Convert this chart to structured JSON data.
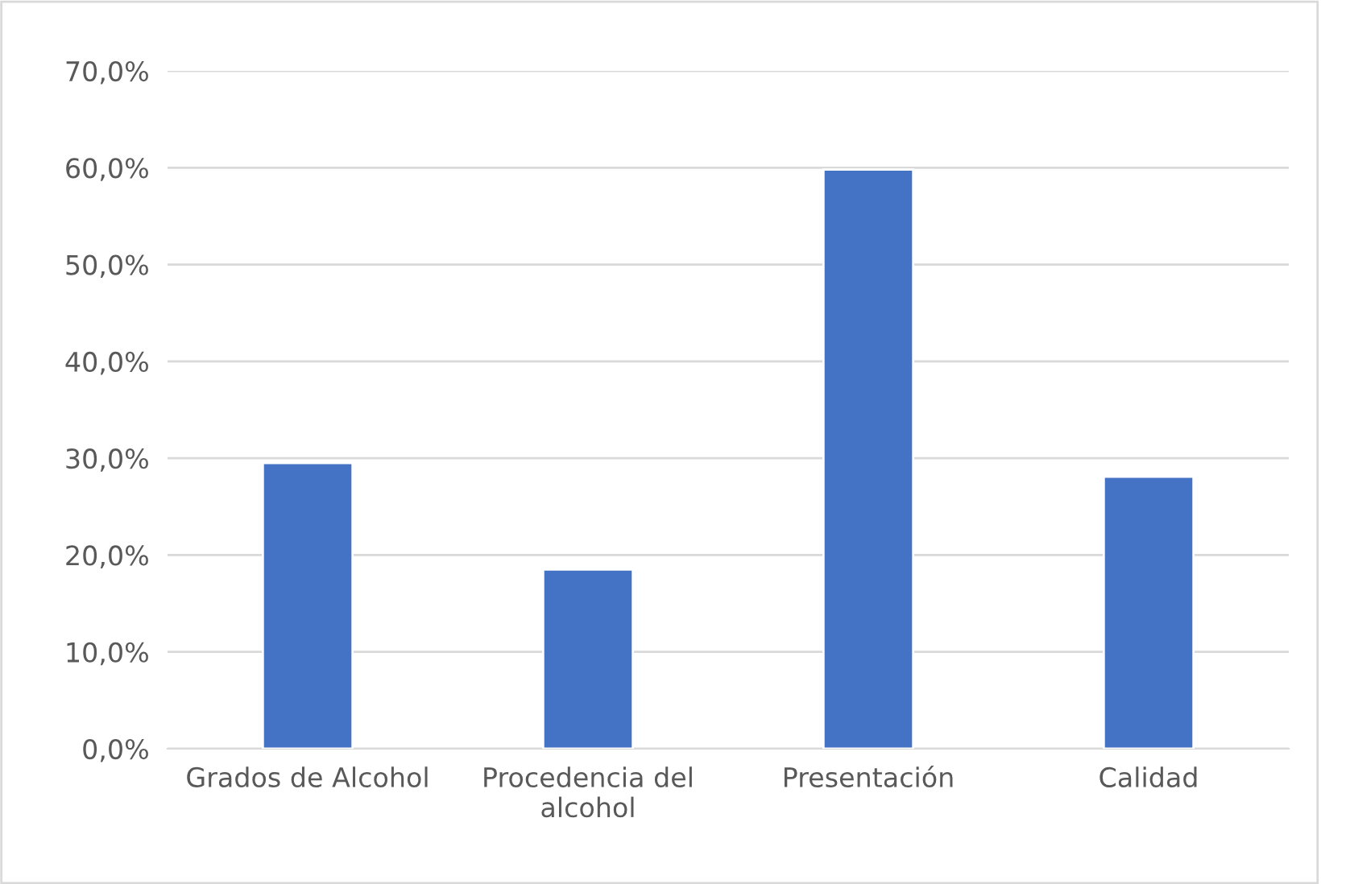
{
  "chart_data": {
    "type": "bar",
    "categories": [
      "Grados de Alcohol",
      "Procedencia del\nalcohol",
      "Presentación",
      "Calidad"
    ],
    "values": [
      29.5,
      18.5,
      59.8,
      28.1
    ],
    "color": "#4472c4",
    "ylim": [
      0,
      70
    ],
    "yticks": [
      {
        "value": 0,
        "label": "0,0%"
      },
      {
        "value": 10,
        "label": "10,0%"
      },
      {
        "value": 20,
        "label": "20,0%"
      },
      {
        "value": 30,
        "label": "30,0%"
      },
      {
        "value": 40,
        "label": "40,0%"
      },
      {
        "value": 50,
        "label": "50,0%"
      },
      {
        "value": 60,
        "label": "60,0%"
      },
      {
        "value": 70,
        "label": "70,0%"
      }
    ],
    "grid": "y"
  }
}
